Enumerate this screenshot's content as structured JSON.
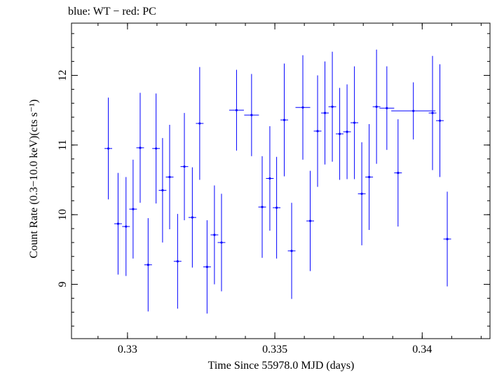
{
  "chart_data": {
    "type": "scatter",
    "title": "blue: WT − red: PC",
    "xlabel": "Time Since 55978.0 MJD (days)",
    "ylabel": "Count Rate (0.3−10.0 keV)(cts s⁻¹)",
    "xlim": [
      0.3281,
      0.3423
    ],
    "ylim": [
      8.22,
      12.75
    ],
    "x_ticks": [
      {
        "value": 0.33,
        "label": "0.33"
      },
      {
        "value": 0.335,
        "label": "0.335"
      },
      {
        "value": 0.34,
        "label": "0.34"
      }
    ],
    "y_ticks": [
      {
        "value": 9,
        "label": "9"
      },
      {
        "value": 10,
        "label": "10"
      },
      {
        "value": 11,
        "label": "11"
      },
      {
        "value": 12,
        "label": "12"
      }
    ],
    "x_minor_step": 0.001,
    "y_minor_step": 0.2,
    "grid": false,
    "legend": "none",
    "series": [
      {
        "color": "#0000ff",
        "points": [
          {
            "x": 0.32935,
            "y": 10.95,
            "xerr": 0.00013,
            "yerr": 0.73
          },
          {
            "x": 0.32968,
            "y": 9.87,
            "xerr": 0.00013,
            "yerr": 0.73
          },
          {
            "x": 0.32995,
            "y": 9.83,
            "xerr": 0.00013,
            "yerr": 0.71
          },
          {
            "x": 0.33019,
            "y": 10.08,
            "xerr": 0.00013,
            "yerr": 0.71
          },
          {
            "x": 0.33043,
            "y": 10.96,
            "xerr": 0.00013,
            "yerr": 0.79
          },
          {
            "x": 0.3307,
            "y": 9.28,
            "xerr": 0.00013,
            "yerr": 0.67
          },
          {
            "x": 0.33097,
            "y": 10.95,
            "xerr": 0.00013,
            "yerr": 0.79
          },
          {
            "x": 0.33119,
            "y": 10.35,
            "xerr": 0.00013,
            "yerr": 0.75
          },
          {
            "x": 0.33143,
            "y": 10.54,
            "xerr": 0.00013,
            "yerr": 0.75
          },
          {
            "x": 0.3317,
            "y": 9.33,
            "xerr": 0.00013,
            "yerr": 0.68
          },
          {
            "x": 0.33193,
            "y": 10.69,
            "xerr": 0.00013,
            "yerr": 0.77
          },
          {
            "x": 0.3322,
            "y": 9.96,
            "xerr": 0.00013,
            "yerr": 0.72
          },
          {
            "x": 0.33245,
            "y": 11.31,
            "xerr": 0.00013,
            "yerr": 0.81
          },
          {
            "x": 0.3327,
            "y": 9.25,
            "xerr": 0.00013,
            "yerr": 0.67
          },
          {
            "x": 0.33295,
            "y": 9.71,
            "xerr": 0.00013,
            "yerr": 0.71
          },
          {
            "x": 0.33319,
            "y": 9.6,
            "xerr": 0.00013,
            "yerr": 0.7
          },
          {
            "x": 0.3337,
            "y": 11.5,
            "xerr": 0.00025,
            "yerr": 0.58
          },
          {
            "x": 0.33421,
            "y": 11.43,
            "xerr": 0.00025,
            "yerr": 0.59
          },
          {
            "x": 0.33457,
            "y": 10.11,
            "xerr": 0.00013,
            "yerr": 0.73
          },
          {
            "x": 0.33483,
            "y": 10.52,
            "xerr": 0.00013,
            "yerr": 0.75
          },
          {
            "x": 0.33506,
            "y": 10.1,
            "xerr": 0.00013,
            "yerr": 0.73
          },
          {
            "x": 0.33532,
            "y": 11.36,
            "xerr": 0.00013,
            "yerr": 0.81
          },
          {
            "x": 0.33557,
            "y": 9.48,
            "xerr": 0.00013,
            "yerr": 0.69
          },
          {
            "x": 0.33595,
            "y": 11.54,
            "xerr": 0.00025,
            "yerr": 0.75
          },
          {
            "x": 0.3362,
            "y": 9.91,
            "xerr": 0.00013,
            "yerr": 0.72
          },
          {
            "x": 0.33645,
            "y": 11.2,
            "xerr": 0.00013,
            "yerr": 0.8
          },
          {
            "x": 0.3367,
            "y": 11.46,
            "xerr": 0.00013,
            "yerr": 0.74
          },
          {
            "x": 0.33695,
            "y": 11.55,
            "xerr": 0.00013,
            "yerr": 0.79
          },
          {
            "x": 0.3372,
            "y": 11.16,
            "xerr": 0.00013,
            "yerr": 0.66
          },
          {
            "x": 0.33745,
            "y": 11.19,
            "xerr": 0.00013,
            "yerr": 0.68
          },
          {
            "x": 0.3377,
            "y": 11.32,
            "xerr": 0.00013,
            "yerr": 0.81
          },
          {
            "x": 0.33795,
            "y": 10.3,
            "xerr": 0.00013,
            "yerr": 0.74
          },
          {
            "x": 0.3382,
            "y": 10.54,
            "xerr": 0.00013,
            "yerr": 0.76
          },
          {
            "x": 0.33845,
            "y": 11.55,
            "xerr": 0.00013,
            "yerr": 0.82
          },
          {
            "x": 0.3388,
            "y": 11.53,
            "xerr": 0.00025,
            "yerr": 0.6
          },
          {
            "x": 0.33918,
            "y": 10.6,
            "xerr": 0.00013,
            "yerr": 0.77
          },
          {
            "x": 0.3397,
            "y": 11.49,
            "xerr": 0.00075,
            "yerr": 0.41
          },
          {
            "x": 0.34035,
            "y": 11.46,
            "xerr": 0.00013,
            "yerr": 0.82
          },
          {
            "x": 0.3406,
            "y": 11.35,
            "xerr": 0.00013,
            "yerr": 0.81
          },
          {
            "x": 0.34085,
            "y": 9.65,
            "xerr": 0.00013,
            "yerr": 0.68
          }
        ]
      }
    ]
  }
}
